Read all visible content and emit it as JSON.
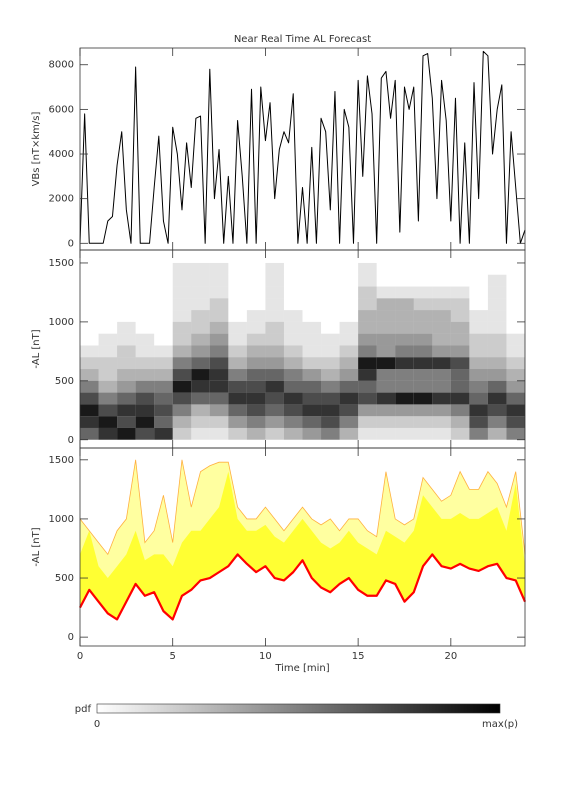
{
  "chart_data": [
    {
      "type": "line",
      "title": "Near Real Time AL Forecast",
      "ylabel": "VBs [nT×km/s]",
      "color": "#000000",
      "xlim": [
        0,
        24
      ],
      "xticks": [
        0,
        5,
        10,
        15,
        20
      ],
      "ylim": [
        -300,
        8750
      ],
      "yticks": [
        0,
        2000,
        4000,
        6000,
        8000
      ],
      "x": [
        0,
        0.25,
        0.5,
        0.75,
        1,
        1.25,
        1.5,
        1.75,
        2,
        2.25,
        2.5,
        2.75,
        3,
        3.25,
        3.5,
        3.75,
        4,
        4.25,
        4.5,
        4.75,
        5,
        5.25,
        5.5,
        5.75,
        6,
        6.25,
        6.5,
        6.75,
        7,
        7.25,
        7.5,
        7.75,
        8,
        8.25,
        8.5,
        8.75,
        9,
        9.25,
        9.5,
        9.75,
        10,
        10.25,
        10.5,
        10.75,
        11,
        11.25,
        11.5,
        11.75,
        12,
        12.25,
        12.5,
        12.75,
        13,
        13.25,
        13.5,
        13.75,
        14,
        14.25,
        14.5,
        14.75,
        15,
        15.25,
        15.5,
        15.75,
        16,
        16.25,
        16.5,
        16.75,
        17,
        17.25,
        17.5,
        17.75,
        18,
        18.25,
        18.5,
        18.75,
        19,
        19.25,
        19.5,
        19.75,
        20,
        20.25,
        20.5,
        20.75,
        21,
        21.25,
        21.5,
        21.75,
        22,
        22.25,
        22.5,
        22.75,
        23,
        23.25,
        23.5,
        23.75,
        24
      ],
      "values": [
        0,
        5800,
        0,
        0,
        0,
        0,
        1000,
        1200,
        3500,
        5000,
        1500,
        0,
        7900,
        0,
        0,
        0,
        2500,
        4800,
        1000,
        0,
        5200,
        4000,
        1500,
        4500,
        2500,
        5600,
        5700,
        0,
        7800,
        2000,
        4200,
        0,
        3000,
        0,
        5500,
        3000,
        0,
        6900,
        0,
        7000,
        4600,
        6300,
        2000,
        4200,
        5000,
        4500,
        6700,
        0,
        2500,
        0,
        4300,
        0,
        5600,
        5000,
        1500,
        6800,
        0,
        6000,
        5200,
        0,
        7300,
        3000,
        7500,
        5800,
        0,
        7400,
        7700,
        5600,
        7300,
        500,
        7000,
        6000,
        7000,
        1000,
        8400,
        8500,
        6500,
        2000,
        7300,
        5500,
        1000,
        6500,
        0,
        4500,
        0,
        7200,
        2000,
        8600,
        8400,
        4000,
        6000,
        7100,
        0,
        5000,
        2500,
        0,
        600
      ]
    },
    {
      "type": "heatmap",
      "ylabel": "-AL [nT]",
      "color": "#000000",
      "xlim": [
        0,
        24
      ],
      "xticks": [
        0,
        5,
        10,
        15,
        20
      ],
      "ylim": [
        -70,
        1610
      ],
      "yticks": [
        0,
        500,
        1000,
        1500
      ],
      "xbins": [
        0,
        1,
        2,
        3,
        4,
        5,
        6,
        7,
        8,
        9,
        10,
        11,
        12,
        13,
        14,
        15,
        16,
        17,
        18,
        19,
        20,
        21,
        22,
        23,
        24
      ],
      "ybins": [
        0,
        100,
        200,
        300,
        400,
        500,
        600,
        700,
        800,
        900,
        1000,
        1100,
        1200,
        1300,
        1400,
        1500,
        1600
      ],
      "z": [
        [
          0.6,
          0.8,
          0.9,
          0.7,
          0.5,
          0.3,
          0.2,
          0.1,
          0,
          0,
          0,
          0,
          0,
          0,
          0,
          0
        ],
        [
          0.8,
          0.9,
          0.7,
          0.5,
          0.3,
          0.2,
          0.2,
          0.1,
          0.1,
          0,
          0,
          0,
          0,
          0,
          0,
          0
        ],
        [
          0.9,
          0.7,
          0.8,
          0.6,
          0.4,
          0.3,
          0.2,
          0.2,
          0.1,
          0.1,
          0,
          0,
          0,
          0,
          0,
          0
        ],
        [
          0.7,
          0.9,
          0.8,
          0.7,
          0.5,
          0.3,
          0.2,
          0.1,
          0.1,
          0,
          0,
          0,
          0,
          0,
          0,
          0
        ],
        [
          0.8,
          0.6,
          0.7,
          0.6,
          0.5,
          0.3,
          0.2,
          0.1,
          0,
          0,
          0,
          0,
          0,
          0,
          0,
          0
        ],
        [
          0.2,
          0.3,
          0.5,
          0.7,
          0.9,
          0.7,
          0.5,
          0.3,
          0.2,
          0.2,
          0.1,
          0.1,
          0.1,
          0.1,
          0.1,
          0
        ],
        [
          0.1,
          0.2,
          0.3,
          0.6,
          0.8,
          0.9,
          0.6,
          0.4,
          0.3,
          0.2,
          0.2,
          0.1,
          0.1,
          0.1,
          0.1,
          0
        ],
        [
          0.1,
          0.2,
          0.4,
          0.6,
          0.8,
          0.8,
          0.7,
          0.5,
          0.4,
          0.3,
          0.2,
          0.2,
          0.1,
          0.1,
          0.1,
          0
        ],
        [
          0.2,
          0.4,
          0.6,
          0.8,
          0.7,
          0.5,
          0.3,
          0.2,
          0.1,
          0.1,
          0,
          0,
          0,
          0,
          0,
          0
        ],
        [
          0.3,
          0.5,
          0.7,
          0.8,
          0.7,
          0.6,
          0.4,
          0.3,
          0.2,
          0.1,
          0.1,
          0,
          0,
          0,
          0,
          0
        ],
        [
          0.2,
          0.4,
          0.6,
          0.7,
          0.8,
          0.6,
          0.4,
          0.3,
          0.2,
          0.2,
          0.1,
          0.1,
          0.1,
          0.1,
          0.1,
          0
        ],
        [
          0.3,
          0.5,
          0.7,
          0.8,
          0.6,
          0.5,
          0.3,
          0.2,
          0.1,
          0.1,
          0.1,
          0,
          0,
          0,
          0,
          0
        ],
        [
          0.4,
          0.6,
          0.8,
          0.7,
          0.6,
          0.4,
          0.2,
          0.1,
          0.1,
          0.1,
          0,
          0,
          0,
          0,
          0,
          0
        ],
        [
          0.5,
          0.7,
          0.8,
          0.7,
          0.5,
          0.3,
          0.2,
          0.1,
          0.1,
          0,
          0,
          0,
          0,
          0,
          0,
          0
        ],
        [
          0.3,
          0.5,
          0.7,
          0.8,
          0.6,
          0.4,
          0.3,
          0.2,
          0.1,
          0.1,
          0,
          0,
          0,
          0,
          0,
          0
        ],
        [
          0.1,
          0.2,
          0.4,
          0.7,
          0.6,
          0.8,
          0.9,
          0.5,
          0.4,
          0.3,
          0.3,
          0.2,
          0.2,
          0.1,
          0.1,
          0
        ],
        [
          0.1,
          0.2,
          0.4,
          0.8,
          0.5,
          0.5,
          0.9,
          0.4,
          0.4,
          0.3,
          0.3,
          0.3,
          0.1,
          0,
          0,
          0
        ],
        [
          0.1,
          0.2,
          0.4,
          0.9,
          0.5,
          0.5,
          0.8,
          0.5,
          0.4,
          0.3,
          0.3,
          0.3,
          0.1,
          0,
          0,
          0
        ],
        [
          0.1,
          0.2,
          0.4,
          0.9,
          0.5,
          0.5,
          0.8,
          0.5,
          0.4,
          0.3,
          0.3,
          0.2,
          0.1,
          0,
          0,
          0
        ],
        [
          0.1,
          0.2,
          0.4,
          0.8,
          0.5,
          0.5,
          0.8,
          0.4,
          0.3,
          0.3,
          0.3,
          0.2,
          0.1,
          0,
          0,
          0
        ],
        [
          0.2,
          0.3,
          0.5,
          0.8,
          0.6,
          0.6,
          0.7,
          0.4,
          0.3,
          0.3,
          0.2,
          0.2,
          0.1,
          0,
          0,
          0
        ],
        [
          0.5,
          0.7,
          0.8,
          0.6,
          0.5,
          0.4,
          0.3,
          0.2,
          0.2,
          0.1,
          0.1,
          0,
          0,
          0,
          0,
          0
        ],
        [
          0.3,
          0.5,
          0.7,
          0.8,
          0.6,
          0.4,
          0.3,
          0.2,
          0.2,
          0.1,
          0.1,
          0.1,
          0.1,
          0.1,
          0,
          0
        ],
        [
          0.5,
          0.7,
          0.8,
          0.6,
          0.4,
          0.3,
          0.2,
          0.1,
          0.1,
          0,
          0,
          0,
          0,
          0,
          0,
          0
        ]
      ]
    },
    {
      "type": "area",
      "ylabel": "-AL [nT]",
      "xlabel": "Time [min]",
      "xlim": [
        0,
        24
      ],
      "xticks": [
        0,
        5,
        10,
        15,
        20
      ],
      "ylim": [
        -75,
        1600
      ],
      "yticks": [
        0,
        500,
        1000,
        1500
      ],
      "x": [
        0,
        0.5,
        1,
        1.5,
        2,
        2.5,
        3,
        3.5,
        4,
        4.5,
        5,
        5.5,
        6,
        6.5,
        7,
        7.5,
        8,
        8.5,
        9,
        9.5,
        10,
        10.5,
        11,
        11.5,
        12,
        12.5,
        13,
        13.5,
        14,
        14.5,
        15,
        15.5,
        16,
        16.5,
        17,
        17.5,
        18,
        18.5,
        19,
        19.5,
        20,
        20.5,
        21,
        21.5,
        22,
        22.5,
        23,
        23.5,
        24
      ],
      "series": [
        {
          "color": "#ffffa0",
          "edge_color": "#ffb040",
          "values": [
            1000,
            900,
            800,
            700,
            900,
            1000,
            1500,
            800,
            900,
            1200,
            800,
            1500,
            1100,
            1400,
            1450,
            1480,
            1480,
            1100,
            1000,
            1000,
            1100,
            1000,
            900,
            1000,
            1100,
            1000,
            950,
            1000,
            900,
            1000,
            1000,
            900,
            850,
            1400,
            1000,
            950,
            1000,
            1350,
            1250,
            1150,
            1200,
            1400,
            1250,
            1250,
            1400,
            1300,
            1100,
            1400,
            700
          ]
        },
        {
          "color": "#ffff33",
          "values": [
            700,
            900,
            600,
            500,
            600,
            700,
            900,
            650,
            700,
            700,
            600,
            800,
            900,
            900,
            1000,
            1100,
            1400,
            1000,
            900,
            900,
            950,
            850,
            800,
            900,
            1000,
            900,
            800,
            750,
            800,
            900,
            800,
            750,
            700,
            900,
            850,
            800,
            900,
            1200,
            1100,
            1000,
            1000,
            1050,
            1000,
            1000,
            1050,
            1100,
            900,
            1300,
            600
          ]
        },
        {
          "color": "#ff0000",
          "values": [
            250,
            400,
            300,
            200,
            150,
            300,
            450,
            350,
            380,
            220,
            150,
            350,
            400,
            480,
            500,
            550,
            600,
            700,
            620,
            550,
            600,
            500,
            480,
            550,
            650,
            500,
            420,
            380,
            450,
            500,
            400,
            350,
            350,
            480,
            450,
            300,
            380,
            600,
            700,
            600,
            580,
            620,
            580,
            560,
            600,
            620,
            500,
            480,
            300
          ]
        }
      ]
    }
  ],
  "colorbar": {
    "label": "pdf",
    "min_label": "0",
    "max_label": "max(p)"
  }
}
